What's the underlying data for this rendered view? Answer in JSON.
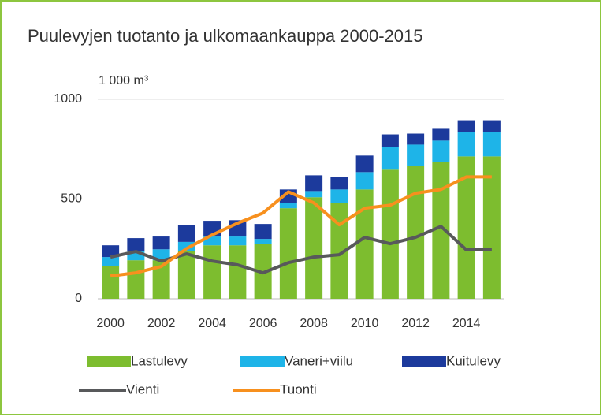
{
  "chart_data": {
    "type": "bar",
    "title": "Puulevyjen tuotanto ja ulkomaankauppa 2000-2015",
    "y_axis_label": "1 000 m³",
    "categories": [
      2000,
      null,
      2002,
      null,
      2004,
      null,
      2006,
      null,
      2008,
      null,
      2010,
      null,
      2012,
      null,
      2014,
      null
    ],
    "series": [
      {
        "name": "Lastulevy",
        "color": "#7dbd2f",
        "stack": true,
        "values": [
          166,
          193,
          193,
          240,
          268,
          268,
          276,
          454,
          509,
          481,
          548,
          647,
          667,
          686,
          714,
          714
        ]
      },
      {
        "name": "Vaneri+viilu",
        "color": "#1eb4e8",
        "stack": true,
        "values": [
          43,
          47,
          55,
          45,
          44,
          44,
          24,
          27,
          31,
          67,
          87,
          114,
          106,
          107,
          122,
          122
        ]
      },
      {
        "name": "Kuitulevy",
        "color": "#1c3a9c",
        "stack": true,
        "values": [
          59,
          64,
          64,
          85,
          79,
          82,
          75,
          67,
          79,
          63,
          83,
          63,
          55,
          59,
          59,
          59
        ]
      },
      {
        "name": "Vienti",
        "color": "#58595b",
        "type": "line",
        "values": [
          209,
          237,
          189,
          225,
          189,
          170,
          130,
          181,
          209,
          221,
          308,
          276,
          308,
          363,
          245,
          245
        ]
      },
      {
        "name": "Tuonti",
        "color": "#f7901e",
        "type": "line",
        "values": [
          114,
          130,
          162,
          252,
          320,
          379,
          430,
          536,
          481,
          371,
          454,
          469,
          529,
          548,
          611,
          611
        ]
      }
    ],
    "ylim": [
      0,
      1000
    ],
    "yticks": [
      0,
      500,
      1000
    ],
    "grid": true,
    "border_color": "#8dc63f"
  }
}
